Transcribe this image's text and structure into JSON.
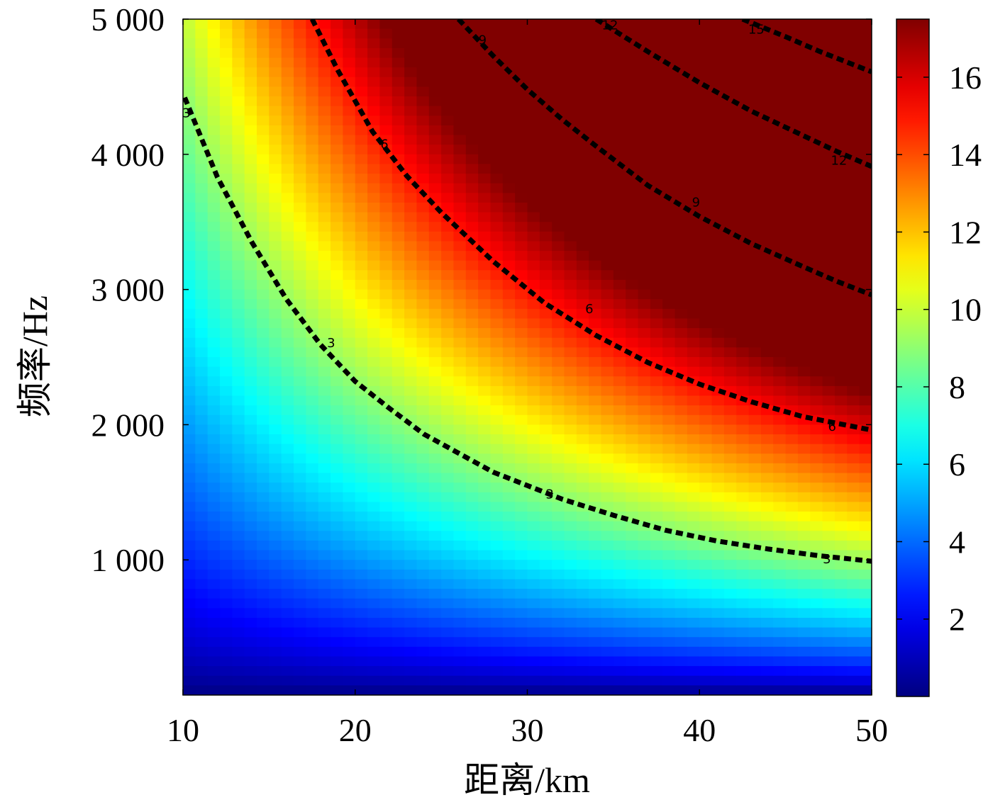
{
  "chart_data": {
    "type": "heatmap",
    "title": "",
    "xlabel": "距离/km",
    "ylabel": "频率/Hz",
    "xlim": [
      10,
      50
    ],
    "ylim": [
      0,
      5000
    ],
    "x_ticks": [
      10,
      20,
      30,
      40,
      50
    ],
    "x_tick_labels": [
      "10",
      "20",
      "30",
      "40",
      "50"
    ],
    "y_ticks": [
      1000,
      2000,
      3000,
      4000,
      5000
    ],
    "y_tick_labels": [
      "1 000",
      "2 000",
      "3 000",
      "4 000",
      "5 000"
    ],
    "colorbar": {
      "colormap": "jet",
      "range": [
        0,
        17.5
      ],
      "ticks": [
        2,
        4,
        6,
        8,
        10,
        12,
        14,
        16
      ],
      "tick_labels": [
        "2",
        "4",
        "6",
        "8",
        "10",
        "12",
        "14",
        "16"
      ]
    },
    "contours": [
      {
        "level": 3,
        "label": "3",
        "style": "dashed",
        "points": [
          [
            10.1,
            4420
          ],
          [
            12,
            3830
          ],
          [
            14,
            3350
          ],
          [
            16,
            2930
          ],
          [
            18,
            2590
          ],
          [
            20,
            2320
          ],
          [
            22,
            2120
          ],
          [
            24,
            1930
          ],
          [
            26,
            1790
          ],
          [
            28,
            1650
          ],
          [
            30,
            1550
          ],
          [
            32,
            1450
          ],
          [
            35,
            1330
          ],
          [
            38,
            1220
          ],
          [
            41,
            1140
          ],
          [
            44,
            1080
          ],
          [
            47,
            1030
          ],
          [
            50,
            990
          ]
        ]
      },
      {
        "level": 6,
        "label": "6",
        "style": "dashed",
        "points": [
          [
            17.5,
            5000
          ],
          [
            19,
            4620
          ],
          [
            21,
            4170
          ],
          [
            23,
            3840
          ],
          [
            25,
            3570
          ],
          [
            28,
            3210
          ],
          [
            31,
            2900
          ],
          [
            34,
            2660
          ],
          [
            37,
            2460
          ],
          [
            40,
            2300
          ],
          [
            43,
            2170
          ],
          [
            46,
            2060
          ],
          [
            48,
            2010
          ],
          [
            50,
            1960
          ]
        ]
      },
      {
        "level": 9,
        "label": "9",
        "style": "dashed",
        "points": [
          [
            26,
            5000
          ],
          [
            28,
            4730
          ],
          [
            30,
            4480
          ],
          [
            32,
            4260
          ],
          [
            34,
            4060
          ],
          [
            37,
            3770
          ],
          [
            40,
            3540
          ],
          [
            43,
            3340
          ],
          [
            46,
            3170
          ],
          [
            48,
            3060
          ],
          [
            50,
            2960
          ]
        ]
      },
      {
        "level": 12,
        "label": "12",
        "style": "dashed",
        "points": [
          [
            34,
            5000
          ],
          [
            37,
            4760
          ],
          [
            40,
            4530
          ],
          [
            43,
            4320
          ],
          [
            46,
            4140
          ],
          [
            48,
            4020
          ],
          [
            50,
            3910
          ]
        ]
      },
      {
        "level": 15,
        "label": "15",
        "style": "dashed",
        "points": [
          [
            42.5,
            5000
          ],
          [
            45,
            4870
          ],
          [
            47,
            4760
          ],
          [
            50,
            4610
          ]
        ]
      }
    ],
    "contour_labels": [
      {
        "label": "3",
        "x": 10.2,
        "y": 4300
      },
      {
        "label": "3",
        "x": 18.6,
        "y": 2600
      },
      {
        "label": "3",
        "x": 31.3,
        "y": 1480
      },
      {
        "label": "3",
        "x": 47.4,
        "y": 1000
      },
      {
        "label": "6",
        "x": 21.7,
        "y": 4070
      },
      {
        "label": "6",
        "x": 33.6,
        "y": 2850
      },
      {
        "label": "6",
        "x": 47.7,
        "y": 1980
      },
      {
        "label": "9",
        "x": 27.4,
        "y": 4840
      },
      {
        "label": "9",
        "x": 39.8,
        "y": 3640
      },
      {
        "label": "12",
        "x": 34.8,
        "y": 4950
      },
      {
        "label": "12",
        "x": 48.1,
        "y": 3950
      },
      {
        "label": "15",
        "x": 43.3,
        "y": 4920
      }
    ]
  }
}
